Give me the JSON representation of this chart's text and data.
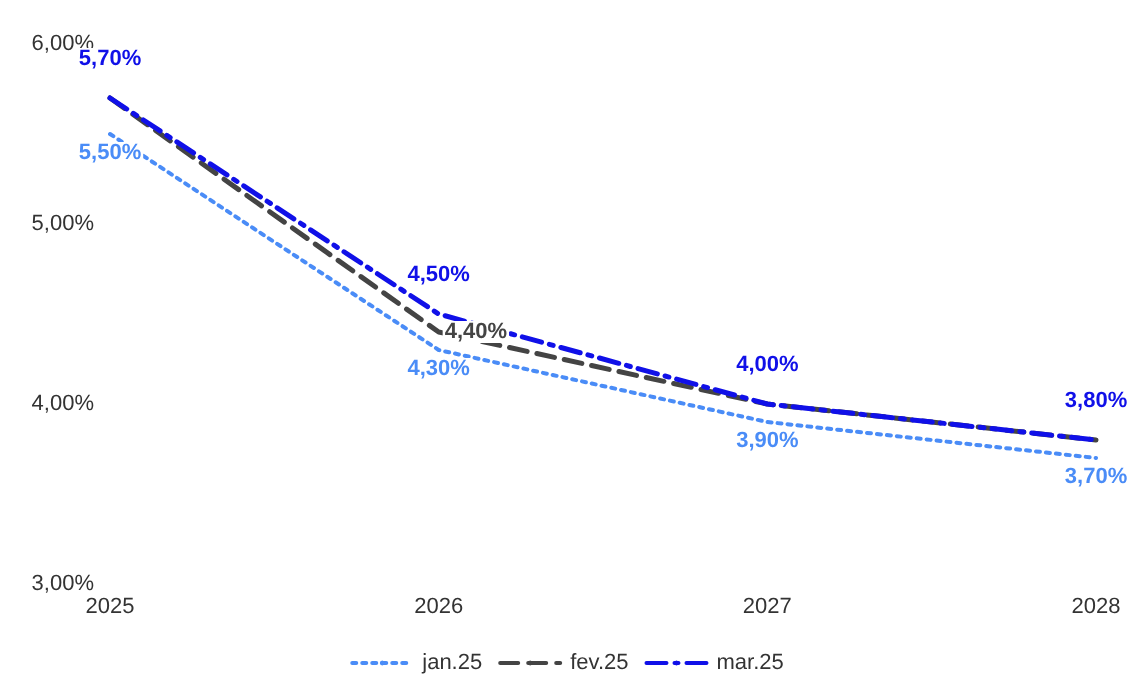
{
  "chart_data": {
    "type": "line",
    "categories": [
      "2025",
      "2026",
      "2027",
      "2028"
    ],
    "series": [
      {
        "name": "jan.25",
        "color": "#4a8cf7",
        "line_style": "dotted",
        "values": [
          5.5,
          4.3,
          3.9,
          3.7
        ],
        "value_labels": [
          "5,50%",
          "4,30%",
          "3,90%",
          "3,70%"
        ]
      },
      {
        "name": "fev.25",
        "color": "#444444",
        "line_style": "dashed",
        "values": [
          5.7,
          4.4,
          4.0,
          3.8
        ],
        "value_labels": [
          null,
          "4,40%",
          null,
          null
        ]
      },
      {
        "name": "mar.25",
        "color": "#1010e8",
        "line_style": "dashed",
        "values": [
          5.7,
          4.5,
          4.0,
          3.8
        ],
        "value_labels": [
          "5,70%",
          "4,50%",
          "4,00%",
          "3,80%"
        ]
      }
    ],
    "ylim": [
      3,
      6
    ],
    "yticks": [
      {
        "value": 3,
        "label": "3,00%"
      },
      {
        "value": 4,
        "label": "4,00%"
      },
      {
        "value": 5,
        "label": "5,00%"
      },
      {
        "value": 6,
        "label": "6,00%"
      }
    ],
    "grid": false,
    "legend": "bottom",
    "marker": "none"
  }
}
